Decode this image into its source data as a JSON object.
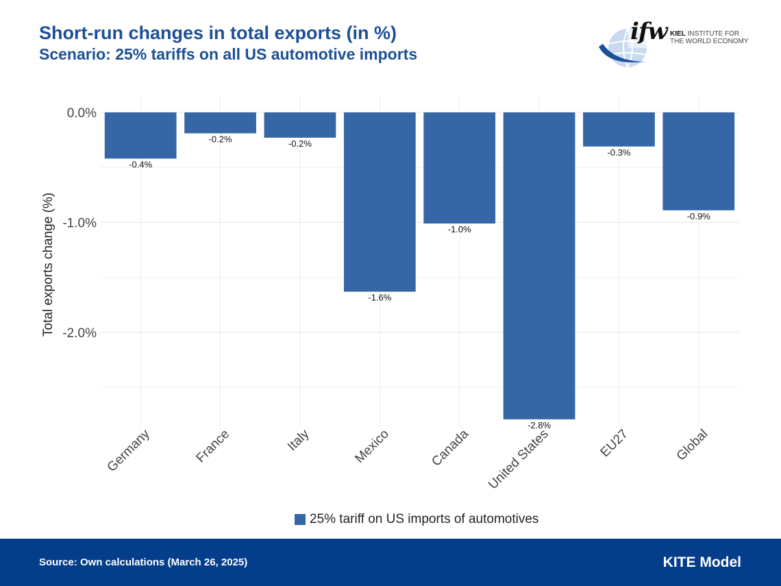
{
  "header": {
    "title": "Short-run changes in total exports (in %)",
    "subtitle": "Scenario: 25% tariffs on all US automotive imports"
  },
  "logo": {
    "wordmark": "ifw",
    "line1_bold": "KIEL",
    "line1_rest": "INSTITUTE FOR",
    "line2": "THE WORLD ECONOMY"
  },
  "chart_data": {
    "type": "bar",
    "categories": [
      "Germany",
      "France",
      "Italy",
      "Mexico",
      "Canada",
      "United States",
      "EU27",
      "Global"
    ],
    "series": [
      {
        "name": "25% tariff on US imports of automotives",
        "values": [
          -0.42,
          -0.19,
          -0.23,
          -1.63,
          -1.01,
          -2.79,
          -0.31,
          -0.89
        ],
        "labels": [
          "-0.4%",
          "-0.2%",
          "-0.2%",
          "-1.6%",
          "-1.0%",
          "-2.8%",
          "-0.3%",
          "-0.9%"
        ],
        "color": "#3566a5"
      }
    ],
    "ylabel": "Total exports change (%)",
    "ylim": [
      -2.9,
      0.1
    ],
    "yticks": [
      0,
      -1,
      -2
    ],
    "ytick_labels": [
      "0.0%",
      "-1.0%",
      "-2.0%"
    ],
    "grid": true,
    "legend": "bottom"
  },
  "footer": {
    "source": "Source: Own calculations (March 26, 2025)",
    "model": "KITE Model",
    "background": "#043e8a"
  }
}
